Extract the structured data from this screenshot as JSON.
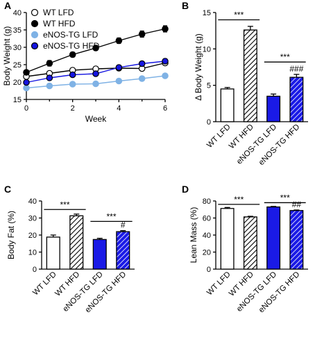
{
  "colors": {
    "wt_fill": "#ffffff",
    "eNOS_lfd": "#7fb2e5",
    "eNOS_hfd": "#1515e0",
    "bar_blue": "#1a1ae6",
    "black": "#000000"
  },
  "chart_data": [
    {
      "id": "A",
      "panel_label": "A",
      "type": "line",
      "xlabel": "Week",
      "ylabel": "Body Weight (g)",
      "xlim": [
        0,
        6
      ],
      "ylim": [
        15,
        40
      ],
      "xticks": [
        "0",
        "2",
        "4",
        "6"
      ],
      "yticks": [
        "15",
        "20",
        "25",
        "30",
        "35",
        "40"
      ],
      "legend_position": "top-left",
      "x": [
        0,
        1,
        2,
        3,
        4,
        5,
        6
      ],
      "series": [
        {
          "name": "WT LFD",
          "marker": "open",
          "values": [
            21.6,
            22.5,
            23.4,
            23.8,
            24.0,
            23.9,
            25.5
          ],
          "err": [
            0.5,
            0.5,
            0.5,
            0.5,
            0.5,
            0.5,
            0.6
          ]
        },
        {
          "name": "WT HFD",
          "marker": "black",
          "values": [
            22.8,
            25.4,
            27.9,
            29.8,
            31.9,
            33.8,
            35.3
          ],
          "err": [
            0.5,
            0.8,
            0.7,
            0.7,
            0.8,
            0.9,
            0.9
          ]
        },
        {
          "name": "eNOS-TG LFD",
          "marker": "light",
          "values": [
            18.3,
            18.9,
            19.4,
            19.5,
            20.3,
            21.0,
            21.8
          ],
          "err": [
            0.4,
            0.6,
            0.5,
            0.5,
            0.5,
            0.5,
            0.5
          ]
        },
        {
          "name": "eNOS-TG HFD",
          "marker": "blue",
          "values": [
            19.9,
            21.2,
            22.1,
            22.4,
            24.2,
            25.3,
            26.0
          ],
          "err": [
            0.5,
            0.6,
            0.5,
            0.6,
            0.6,
            0.6,
            0.7
          ]
        }
      ]
    },
    {
      "id": "B",
      "panel_label": "B",
      "type": "bar",
      "ylabel": "Δ Body Weight (g)",
      "ylim": [
        0,
        15
      ],
      "yticks": [
        "0",
        "5",
        "10",
        "15"
      ],
      "categories": [
        "WT LFD",
        "WT HFD",
        "eNOS-TG LFD",
        "eNOS-TG HFD"
      ],
      "values": [
        4.5,
        12.6,
        3.5,
        6.1
      ],
      "err": [
        0.2,
        0.5,
        0.3,
        0.4
      ],
      "sig": [
        {
          "from": 0,
          "to": 1,
          "label": "***",
          "y": 14.0
        },
        {
          "from": 2,
          "to": 3,
          "label": "***",
          "y": 8.2
        }
      ],
      "annotations": [
        {
          "bar": 3,
          "label": "###"
        }
      ]
    },
    {
      "id": "C",
      "panel_label": "C",
      "type": "bar",
      "ylabel": "Body Fat (%)",
      "ylim": [
        0,
        40
      ],
      "yticks": [
        "0",
        "10",
        "20",
        "30",
        "40"
      ],
      "categories": [
        "WT LFD",
        "WT HFD",
        "eNOS-TG LFD",
        "eNOS-TG HFD"
      ],
      "values": [
        18.8,
        31.3,
        17.4,
        22.0
      ],
      "err": [
        1.2,
        1.0,
        0.7,
        0.6
      ],
      "sig": [
        {
          "from": 0,
          "to": 1,
          "label": "***",
          "y": 35.0
        },
        {
          "from": 2,
          "to": 3,
          "label": "***",
          "y": 28.0
        }
      ],
      "annotations": [
        {
          "bar": 3,
          "label": "#"
        }
      ]
    },
    {
      "id": "D",
      "panel_label": "D",
      "type": "bar",
      "ylabel": "Lean Mass (%)",
      "ylim": [
        0,
        80
      ],
      "yticks": [
        "0",
        "20",
        "40",
        "60",
        "80"
      ],
      "categories": [
        "WT LFD",
        "WT HFD",
        "eNOS-TG LFD",
        "eNOS-TG HFD"
      ],
      "values": [
        71.2,
        61.3,
        73.0,
        68.8
      ],
      "err": [
        1.2,
        0.7,
        0.6,
        0.6
      ],
      "sig": [
        {
          "from": 0,
          "to": 1,
          "label": "***",
          "y": 76.0
        },
        {
          "from": 2,
          "to": 3,
          "label": "***",
          "y": 78.0
        }
      ],
      "annotations": [
        {
          "bar": 3,
          "label": "##"
        }
      ]
    }
  ]
}
